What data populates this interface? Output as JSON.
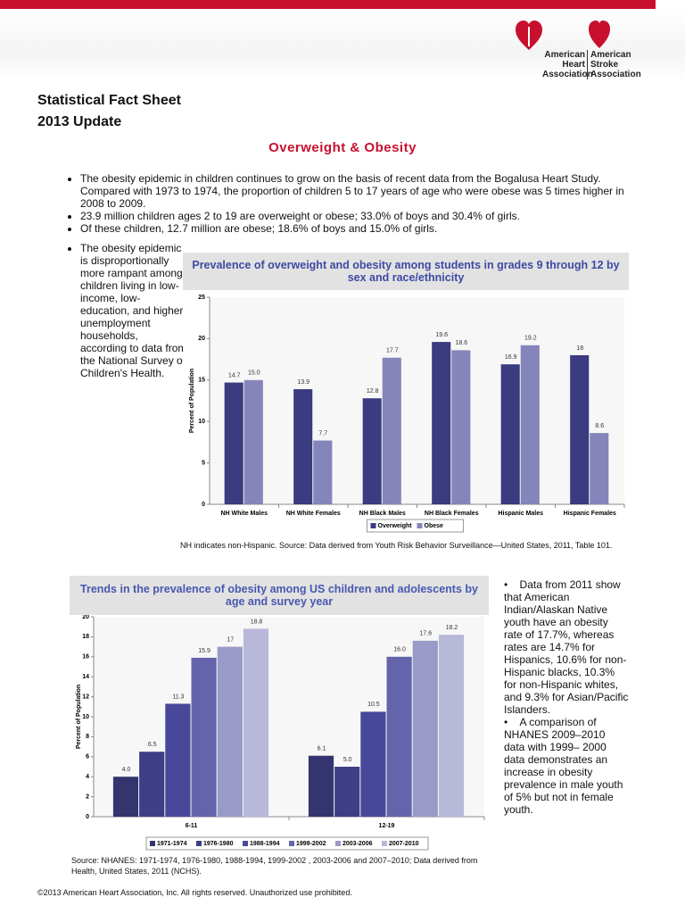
{
  "logo": {
    "heart": "American Heart Association",
    "stroke": "American Stroke Association"
  },
  "header": {
    "title": "Statistical Fact Sheet",
    "subtitle": "2013 Update"
  },
  "section_title": "Overweight & Obesity",
  "bullets": [
    "The obesity epidemic in children continues to grow on the basis of recent data from the Bogalusa Heart Study. Compared with 1973 to 1974, the proportion of children 5 to 17 years of age who were obese was 5 times higher in 2008 to 2009.",
    "23.9 million children ages 2 to 19 are overweight or obese; 33.0% of boys and 30.4% of girls.",
    "Of these children, 12.7 million are obese; 18.6% of boys and 15.0% of girls."
  ],
  "left_bullet": "The obesity epidemic is disproportionally more rampant among children living in low-income, low-education, and higher-unemployment households, according to data from the National Survey of Children's Health.",
  "chart_data": [
    {
      "type": "bar",
      "title": "Prevalence of overweight and obesity among students in grades 9 through 12 by sex and race/ethnicity",
      "y_label": "Percent of Population",
      "categories": [
        "NH White Males",
        "NH White Females",
        "NH Black Males",
        "NH Black Females",
        "Hispanic Males",
        "Hispanic Females"
      ],
      "series": [
        {
          "name": "Overweight",
          "color": "#3b3b80",
          "values": [
            14.7,
            13.9,
            12.8,
            19.6,
            16.9,
            18
          ],
          "value_labels": [
            "14.7",
            "13.9",
            "12.8",
            "19.6",
            "16.9",
            "18"
          ]
        },
        {
          "name": "Obese",
          "color": "#8585bb",
          "values": [
            15.0,
            7.7,
            17.7,
            18.6,
            19.2,
            8.6
          ],
          "value_labels": [
            "15.0",
            "7.7",
            "17.7",
            "18.6",
            "19.2",
            "8.6"
          ]
        }
      ],
      "ylim": [
        0,
        25
      ],
      "yticks": [
        0,
        5,
        10,
        15,
        20,
        25
      ],
      "legend": "bottom"
    },
    {
      "type": "bar",
      "title": "Trends in the prevalence of obesity among US children and adolescents by age and survey year",
      "y_label": "Percent of Population",
      "categories": [
        "6-11",
        "12-19"
      ],
      "series": [
        {
          "name": "1971-1974",
          "color": "#34346f",
          "values": [
            4.0,
            6.1
          ],
          "value_labels": [
            "4.0",
            "6.1"
          ]
        },
        {
          "name": "1976-1980",
          "color": "#3e3e86",
          "values": [
            6.5,
            5.0
          ],
          "value_labels": [
            "6.5",
            "5.0"
          ]
        },
        {
          "name": "1988-1994",
          "color": "#48489a",
          "values": [
            11.3,
            10.5
          ],
          "value_labels": [
            "11.3",
            "10.5"
          ]
        },
        {
          "name": "1999-2002",
          "color": "#6464ad",
          "values": [
            15.9,
            16.0
          ],
          "value_labels": [
            "15.9",
            "16.0"
          ]
        },
        {
          "name": "2003-2006",
          "color": "#9a9ac8",
          "values": [
            17,
            17.6
          ],
          "value_labels": [
            "17",
            "17.6"
          ]
        },
        {
          "name": "2007-2010",
          "color": "#b8b8d9",
          "values": [
            18.8,
            18.2
          ],
          "value_labels": [
            "18.8",
            "18.2"
          ]
        }
      ],
      "ylim": [
        0,
        20
      ],
      "yticks": [
        0,
        2,
        4,
        6,
        8,
        10,
        12,
        14,
        16,
        18,
        20
      ],
      "legend": "bottom"
    }
  ],
  "chart1_note": "NH indicates non-Hispanic.  Source: Data derived from Youth Risk Behavior Surveillance—United States, 2011, Table 101.",
  "right_bullets": [
    "Data from 2011 show that American Indian/Alaskan Native youth have an obesity rate of 17.7%, whereas rates are 14.7% for Hispanics, 10.6% for non-Hispanic blacks, 10.3% for non-Hispanic whites, and 9.3% for Asian/Pacific Islanders.",
    "A comparison of NHANES 2009–2010 data with 1999– 2000 data demonstrates an increase in obesity prevalence in male youth of 5% but not in female youth."
  ],
  "chart2_note": "Source: NHANES: 1971-1974, 1976-1980, 1988-1994, 1999-2002 , 2003-2006 and 2007–2010; Data derived from Health, United States, 2011 (NCHS).",
  "footer": "©2013 American Heart Association, Inc. All rights reserved. Unauthorized use prohibited."
}
